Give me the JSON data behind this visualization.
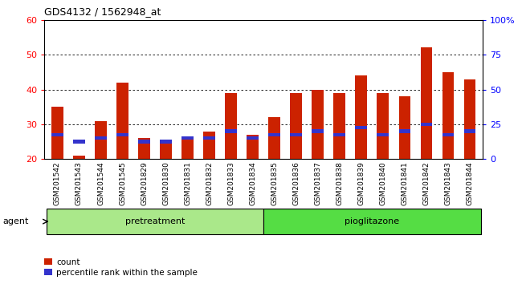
{
  "title": "GDS4132 / 1562948_at",
  "samples": [
    "GSM201542",
    "GSM201543",
    "GSM201544",
    "GSM201545",
    "GSM201829",
    "GSM201830",
    "GSM201831",
    "GSM201832",
    "GSM201833",
    "GSM201834",
    "GSM201835",
    "GSM201836",
    "GSM201837",
    "GSM201838",
    "GSM201839",
    "GSM201840",
    "GSM201841",
    "GSM201842",
    "GSM201843",
    "GSM201844"
  ],
  "count_values": [
    35,
    21,
    31,
    42,
    26,
    25,
    26,
    28,
    39,
    27,
    32,
    39,
    40,
    39,
    44,
    39,
    38,
    52,
    45,
    43
  ],
  "percentile_values": [
    27,
    25,
    26,
    27,
    25,
    25,
    26,
    26,
    28,
    26,
    27,
    27,
    28,
    27,
    29,
    27,
    28,
    30,
    27,
    28
  ],
  "group1_count": 10,
  "group2_count": 10,
  "ylim_left": [
    20,
    60
  ],
  "ylim_right": [
    0,
    100
  ],
  "yticks_left": [
    20,
    30,
    40,
    50,
    60
  ],
  "yticks_right": [
    0,
    25,
    50,
    75,
    100
  ],
  "yticklabels_right": [
    "0",
    "25",
    "50",
    "75",
    "100%"
  ],
  "bar_color": "#cc2200",
  "percentile_color": "#3333cc",
  "bar_bottom": 20,
  "group1_color": "#aae88a",
  "group2_color": "#55dd44",
  "agent_label": "agent",
  "group1_text": "pretreatment",
  "group2_text": "pioglitazone",
  "legend_count_label": "count",
  "legend_pct_label": "percentile rank within the sample",
  "xtick_bg": "#cccccc",
  "plot_bg": "#ffffff",
  "bar_width": 0.55
}
